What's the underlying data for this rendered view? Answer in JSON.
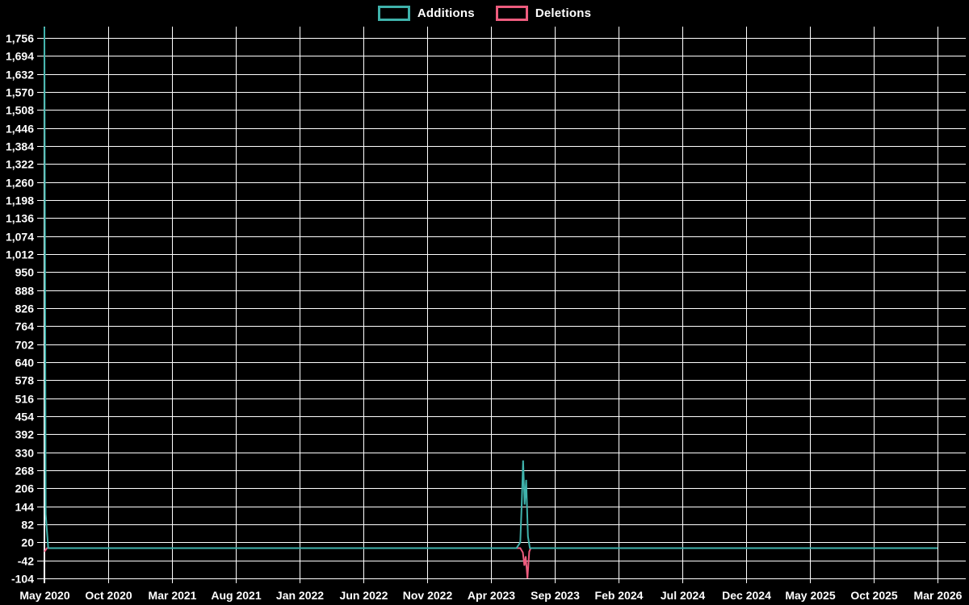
{
  "legend": {
    "items": [
      {
        "label": "Additions",
        "color": "#3fb2ab"
      },
      {
        "label": "Deletions",
        "color": "#ed5c7e"
      }
    ]
  },
  "colors": {
    "background": "#000000",
    "grid": "#ffffff",
    "axis": "#ffffff",
    "text": "#ffffff"
  },
  "chart_data": {
    "type": "line",
    "title": "",
    "xlabel": "",
    "ylabel": "",
    "grid": true,
    "legend_position": "top-center",
    "x_axis": {
      "tick_labels": [
        "May 2020",
        "Oct 2020",
        "Mar 2021",
        "Aug 2021",
        "Jan 2022",
        "Jun 2022",
        "Nov 2022",
        "Apr 2023",
        "Sep 2023",
        "Feb 2024",
        "Jul 2024",
        "Dec 2024",
        "May 2025",
        "Oct 2025",
        "Mar 2026"
      ],
      "range_months": [
        0,
        70
      ],
      "months_per_tick": 5
    },
    "y_axis": {
      "min": -104,
      "max": 1756,
      "step": 62,
      "tick_labels": [
        "-104",
        "-42",
        "20",
        "82",
        "144",
        "206",
        "268",
        "330",
        "392",
        "454",
        "516",
        "578",
        "640",
        "702",
        "764",
        "826",
        "888",
        "950",
        "1,012",
        "1,074",
        "1,136",
        "1,198",
        "1,260",
        "1,322",
        "1,384",
        "1,446",
        "1,508",
        "1,570",
        "1,632",
        "1,694",
        "1,756"
      ]
    },
    "series": [
      {
        "name": "Additions",
        "color": "#3fb2ab",
        "points": [
          [
            0,
            1794
          ],
          [
            0.1,
            117
          ],
          [
            0.3,
            0
          ],
          [
            37.0,
            0
          ],
          [
            37.3,
            20
          ],
          [
            37.42,
            160
          ],
          [
            37.52,
            302
          ],
          [
            37.64,
            150
          ],
          [
            37.76,
            235
          ],
          [
            37.9,
            40
          ],
          [
            38.05,
            0
          ],
          [
            70,
            0
          ]
        ]
      },
      {
        "name": "Deletions",
        "color": "#ed5c7e",
        "points": [
          [
            0,
            -12
          ],
          [
            0.2,
            0
          ],
          [
            37.3,
            0
          ],
          [
            37.5,
            -15
          ],
          [
            37.62,
            -60
          ],
          [
            37.72,
            -28
          ],
          [
            37.86,
            -104
          ],
          [
            38.0,
            -12
          ],
          [
            38.12,
            0
          ],
          [
            70,
            0
          ]
        ]
      }
    ]
  }
}
